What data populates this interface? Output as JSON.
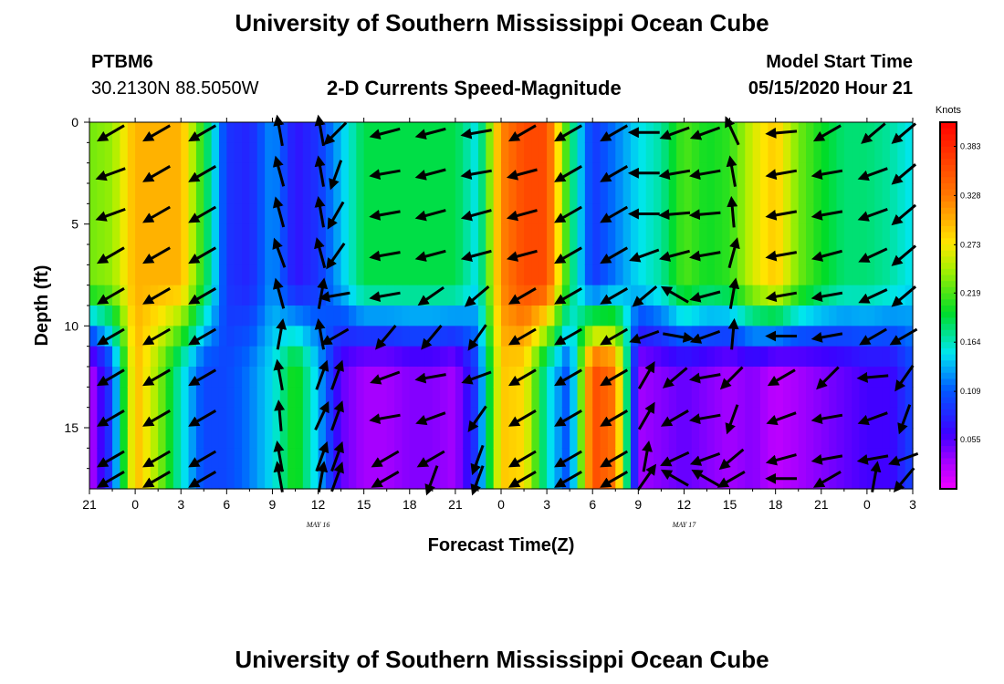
{
  "header": {
    "title": "University of Southern Mississippi Ocean Cube",
    "station": "PTBM6",
    "coordinates": "30.2130N 88.5050W",
    "subtitle": "2-D Currents Speed-Magnitude",
    "model_start_label": "Model Start Time",
    "model_start_value": "05/15/2020 Hour 21"
  },
  "footer": {
    "title": "University of Southern Mississippi Ocean Cube"
  },
  "chart_data": {
    "type": "heatmap",
    "title": "2-D Currents Speed-Magnitude",
    "xlabel": "Forecast Time(Z)",
    "ylabel": "Depth (ft)",
    "x_hours": [
      0,
      3,
      6,
      9,
      12,
      15,
      18,
      21,
      24,
      27,
      30,
      33,
      36,
      39,
      42,
      45,
      48,
      51,
      54
    ],
    "x_tick_labels": [
      "21",
      "0",
      "3",
      "6",
      "9",
      "12",
      "15",
      "18",
      "21",
      "0",
      "3",
      "6",
      "9",
      "12",
      "15",
      "18",
      "21",
      "0",
      "3"
    ],
    "date_labels": [
      {
        "text": "MAY  16",
        "hour": 15
      },
      {
        "text": "MAY  17",
        "hour": 39
      }
    ],
    "ylim": [
      0,
      18
    ],
    "y_ticks": [
      0,
      5,
      10,
      15
    ],
    "colorbar": {
      "units": "Knots",
      "range": [
        0.0,
        0.41
      ],
      "tick_values": [
        0.383,
        0.328,
        0.273,
        0.219,
        0.164,
        0.109,
        0.055
      ],
      "tick_labels": [
        "0.383",
        "0.328",
        "0.273",
        "0.219",
        "0.164",
        "0.109",
        "0.055"
      ]
    },
    "surface_speed_by_hour": {
      "hours": [
        0,
        1.5,
        3,
        4.5,
        6,
        7.5,
        9,
        10.5,
        12,
        13.5,
        15,
        16.5,
        18,
        19.5,
        21,
        22.5,
        24,
        25.5,
        27,
        28.5,
        30,
        31.5,
        33,
        34.5,
        36,
        37.5,
        39,
        40.5,
        42,
        43.5,
        45,
        46.5,
        48,
        49.5,
        51,
        52.5,
        54
      ],
      "speed": [
        0.23,
        0.24,
        0.3,
        0.3,
        0.3,
        0.2,
        0.09,
        0.08,
        0.13,
        0.07,
        0.09,
        0.14,
        0.19,
        0.19,
        0.19,
        0.19,
        0.19,
        0.15,
        0.32,
        0.36,
        0.36,
        0.19,
        0.09,
        0.12,
        0.15,
        0.17,
        0.22,
        0.2,
        0.21,
        0.26,
        0.29,
        0.23,
        0.2,
        0.18,
        0.18,
        0.17,
        0.15
      ]
    },
    "bottom_speed_by_hour": {
      "hours": [
        0,
        1.5,
        3,
        4.5,
        6,
        7.5,
        9,
        10.5,
        12,
        13.5,
        15,
        16.5,
        18,
        19.5,
        21,
        22.5,
        24,
        25.5,
        27,
        28.5,
        30,
        31.5,
        33,
        34.5,
        36,
        37.5,
        39,
        40.5,
        42,
        43.5,
        45,
        46.5,
        48,
        49.5,
        51,
        52.5,
        54
      ],
      "speed": [
        0.02,
        0.1,
        0.3,
        0.24,
        0.16,
        0.1,
        0.1,
        0.12,
        0.15,
        0.21,
        0.14,
        0.05,
        0.03,
        0.03,
        0.04,
        0.04,
        0.03,
        0.1,
        0.29,
        0.28,
        0.16,
        0.1,
        0.36,
        0.33,
        0.03,
        0.04,
        0.05,
        0.04,
        0.03,
        0.04,
        0.02,
        0.03,
        0.04,
        0.05,
        0.06,
        0.06,
        0.1
      ]
    },
    "arrow_columns_hour": [
      1.5,
      4.5,
      7.5,
      12.5,
      15.2,
      16.2,
      19.5,
      22.5,
      25.5,
      28.5,
      31.5,
      34.5,
      36.5,
      38.5,
      40.5,
      42.2,
      45.5,
      48.5,
      51.5,
      53.5
    ],
    "arrow_rows_depth": [
      0.5,
      2.5,
      4.5,
      6.5,
      8.5,
      10.5,
      12.5,
      14.5,
      16.5,
      17.5
    ],
    "current_direction_deg": [
      [
        240,
        240,
        240,
        350,
        350,
        225,
        255,
        255,
        260,
        240,
        240,
        240,
        270,
        250,
        250,
        335,
        265,
        240,
        230,
        230
      ],
      [
        250,
        240,
        240,
        345,
        350,
        200,
        260,
        255,
        260,
        255,
        240,
        240,
        270,
        260,
        260,
        350,
        260,
        260,
        250,
        230
      ],
      [
        250,
        240,
        240,
        345,
        350,
        210,
        260,
        255,
        255,
        255,
        240,
        240,
        270,
        265,
        265,
        355,
        260,
        260,
        250,
        230
      ],
      [
        240,
        240,
        240,
        340,
        345,
        215,
        260,
        255,
        255,
        255,
        240,
        240,
        250,
        255,
        260,
        15,
        260,
        255,
        245,
        230
      ],
      [
        240,
        240,
        240,
        345,
        10,
        260,
        260,
        235,
        230,
        240,
        240,
        240,
        230,
        300,
        255,
        10,
        260,
        260,
        245,
        230
      ],
      [
        240,
        240,
        240,
        10,
        350,
        240,
        220,
        220,
        215,
        240,
        240,
        240,
        250,
        100,
        250,
        5,
        270,
        260,
        240,
        240
      ],
      [
        240,
        240,
        240,
        350,
        20,
        20,
        250,
        260,
        250,
        240,
        240,
        240,
        30,
        230,
        260,
        225,
        240,
        225,
        265,
        215
      ],
      [
        240,
        240,
        240,
        355,
        25,
        20,
        260,
        250,
        215,
        240,
        240,
        240,
        30,
        240,
        260,
        200,
        250,
        260,
        250,
        200
      ],
      [
        240,
        240,
        240,
        350,
        20,
        20,
        240,
        240,
        200,
        240,
        240,
        240,
        10,
        245,
        250,
        230,
        255,
        260,
        260,
        250
      ],
      [
        240,
        240,
        240,
        350,
        10,
        20,
        240,
        200,
        200,
        240,
        240,
        240,
        35,
        300,
        300,
        240,
        270,
        240,
        10,
        220
      ]
    ]
  }
}
